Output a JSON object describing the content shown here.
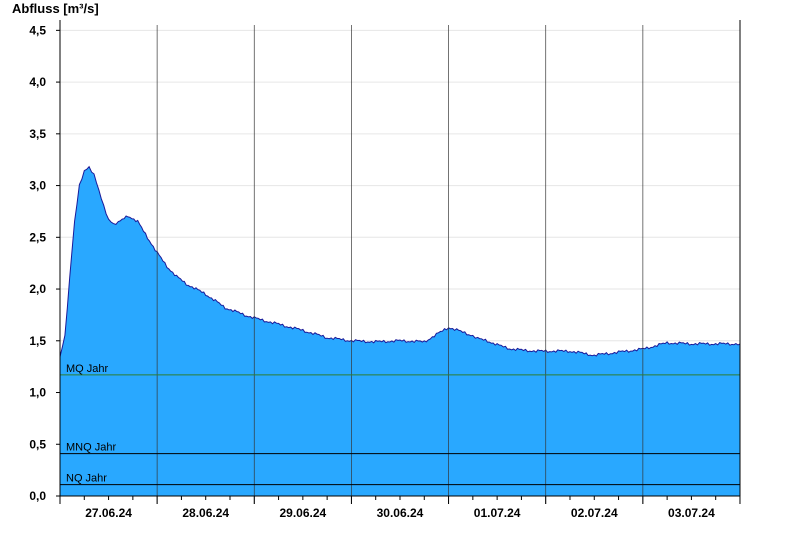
{
  "chart_data": {
    "type": "area",
    "title": "",
    "ylabel": "Abfluss [m³/s]",
    "xlabel": "",
    "ylim": [
      0,
      4.6
    ],
    "yticks": [
      0,
      0.5,
      1.0,
      1.5,
      2.0,
      2.5,
      3.0,
      3.5,
      4.0,
      4.5
    ],
    "ytick_labels": [
      "0,0",
      "0,5",
      "1,0",
      "1,5",
      "2,0",
      "2,5",
      "3,0",
      "3,5",
      "4,0",
      "4,5"
    ],
    "x_range_days": [
      "26.06.24 18:00",
      "04.07.24 00:00"
    ],
    "day_labels": [
      "27.06.24",
      "28.06.24",
      "29.06.24",
      "30.06.24",
      "01.07.24",
      "02.07.24",
      "03.07.24"
    ],
    "grid": "horizontal",
    "colors": {
      "fill": "#29a8ff",
      "line": "#1a1a99",
      "mq_line": "#2e7d32",
      "ref_line": "#000000"
    },
    "series": [
      {
        "name": "",
        "x_day_offset": [
          0.0,
          0.05,
          0.1,
          0.15,
          0.2,
          0.25,
          0.3,
          0.35,
          0.4,
          0.45,
          0.5,
          0.55,
          0.6,
          0.7,
          0.8,
          0.9,
          1.0,
          1.1,
          1.2,
          1.3,
          1.5,
          1.7,
          1.9,
          2.0,
          2.25,
          2.5,
          2.75,
          3.0,
          3.25,
          3.5,
          3.75,
          4.0,
          4.25,
          4.3,
          4.4,
          4.5,
          4.65,
          4.75,
          4.9,
          5.0,
          5.25,
          5.5,
          5.75,
          6.0,
          6.25,
          6.5,
          6.75,
          7.0
        ],
        "values": [
          1.35,
          1.55,
          2.1,
          2.65,
          3.0,
          3.15,
          3.18,
          3.1,
          2.95,
          2.8,
          2.68,
          2.63,
          2.64,
          2.71,
          2.65,
          2.5,
          2.35,
          2.22,
          2.12,
          2.05,
          1.95,
          1.82,
          1.75,
          1.72,
          1.66,
          1.6,
          1.53,
          1.5,
          1.49,
          1.5,
          1.49,
          1.63,
          1.55,
          1.52,
          1.5,
          1.46,
          1.42,
          1.41,
          1.4,
          1.4,
          1.4,
          1.36,
          1.39,
          1.42,
          1.48,
          1.47,
          1.47,
          1.47
        ]
      }
    ],
    "reference_lines": [
      {
        "label": "MQ Jahr",
        "value": 1.17
      },
      {
        "label": "MNQ Jahr",
        "value": 0.41
      },
      {
        "label": "NQ Jahr",
        "value": 0.11
      }
    ]
  }
}
